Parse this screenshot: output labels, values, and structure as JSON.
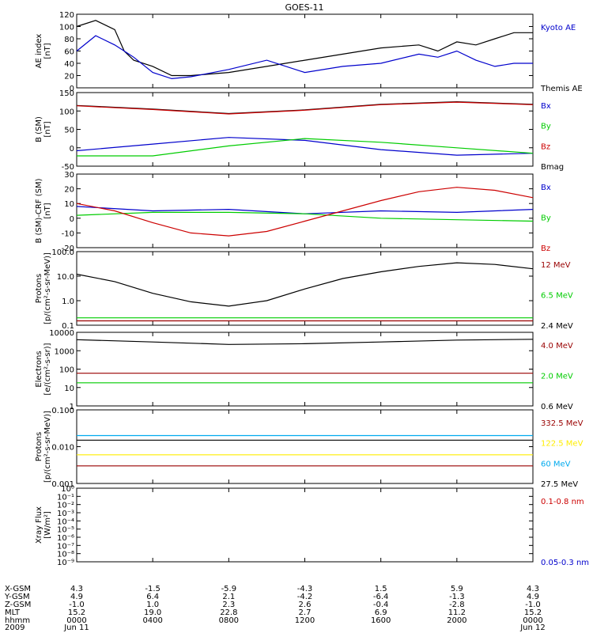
{
  "title": "GOES-11",
  "chart_data": [
    {
      "type": "line",
      "ylabel": "AE index\n[nT]",
      "ylim": [
        0,
        120
      ],
      "y_ticks": [
        "0",
        "20",
        "40",
        "60",
        "80",
        "100",
        "120"
      ],
      "legend": [
        {
          "name": "Kyoto AE",
          "color": "#0000cc"
        },
        {
          "name": "Themis AE",
          "color": "#000000"
        }
      ],
      "series": [
        {
          "name": "Themis AE",
          "color": "#000000",
          "x": [
            0,
            1,
            2,
            2.5,
            3,
            4,
            5,
            6,
            8,
            10,
            12,
            14,
            16,
            18,
            19,
            20,
            21,
            22,
            23,
            24
          ],
          "y": [
            100,
            110,
            95,
            60,
            45,
            35,
            20,
            20,
            25,
            35,
            45,
            55,
            65,
            70,
            60,
            75,
            70,
            80,
            90,
            90
          ]
        },
        {
          "name": "Kyoto AE",
          "color": "#0000cc",
          "x": [
            0,
            1,
            2,
            2.5,
            3,
            4,
            5,
            6,
            8,
            10,
            12,
            14,
            16,
            18,
            19,
            20,
            21,
            22,
            23,
            24
          ],
          "y": [
            60,
            85,
            70,
            60,
            50,
            25,
            15,
            18,
            30,
            45,
            25,
            35,
            40,
            55,
            50,
            60,
            45,
            35,
            40,
            40
          ]
        }
      ]
    },
    {
      "type": "line",
      "ylabel": "B (SM)\n[nT]",
      "ylim": [
        -50,
        150
      ],
      "y_ticks": [
        "-50",
        "0",
        "50",
        "100",
        "150"
      ],
      "legend": [
        {
          "name": "Bx",
          "color": "#0000cc"
        },
        {
          "name": "By",
          "color": "#00cc00"
        },
        {
          "name": "Bz",
          "color": "#cc0000"
        },
        {
          "name": "Bmag",
          "color": "#000000"
        }
      ],
      "series": [
        {
          "name": "Bmag",
          "color": "#000000",
          "x": [
            0,
            4,
            8,
            12,
            16,
            20,
            24
          ],
          "y": [
            115,
            105,
            93,
            103,
            118,
            125,
            118
          ]
        },
        {
          "name": "Bz",
          "color": "#cc0000",
          "x": [
            0,
            4,
            8,
            12,
            16,
            20,
            24
          ],
          "y": [
            114,
            104,
            92,
            102,
            117,
            124,
            117
          ]
        },
        {
          "name": "Bx",
          "color": "#0000cc",
          "x": [
            0,
            4,
            8,
            12,
            16,
            20,
            24
          ],
          "y": [
            -8,
            10,
            28,
            20,
            -5,
            -20,
            -15
          ]
        },
        {
          "name": "By",
          "color": "#00cc00",
          "x": [
            0,
            4,
            8,
            12,
            16,
            20,
            24
          ],
          "y": [
            -22,
            -22,
            5,
            25,
            15,
            0,
            -15
          ]
        }
      ]
    },
    {
      "type": "line",
      "ylabel": "B (SM)-CRF (SM)\n[nT]",
      "ylim": [
        -20,
        30
      ],
      "y_ticks": [
        "-20",
        "-10",
        "0",
        "10",
        "20",
        "30"
      ],
      "legend": [
        {
          "name": "Bx",
          "color": "#0000cc"
        },
        {
          "name": "By",
          "color": "#00cc00"
        },
        {
          "name": "Bz",
          "color": "#cc0000"
        }
      ],
      "series": [
        {
          "name": "Bx",
          "color": "#0000cc",
          "x": [
            0,
            4,
            8,
            12,
            16,
            20,
            24
          ],
          "y": [
            8,
            5,
            6,
            3,
            5,
            4,
            6
          ]
        },
        {
          "name": "By",
          "color": "#00cc00",
          "x": [
            0,
            4,
            8,
            12,
            16,
            20,
            24
          ],
          "y": [
            2,
            4,
            4,
            3,
            0,
            -1,
            -2
          ]
        },
        {
          "name": "Bz",
          "color": "#cc0000",
          "x": [
            0,
            2,
            4,
            6,
            8,
            10,
            12,
            14,
            16,
            18,
            20,
            22,
            24
          ],
          "y": [
            10,
            5,
            -3,
            -10,
            -12,
            -9,
            -2,
            5,
            12,
            18,
            21,
            19,
            14
          ]
        }
      ]
    },
    {
      "type": "line",
      "ylabel": "Protons\n[p/(cm²-s-sr-MeV)]",
      "ylog": true,
      "ylim": [
        0.1,
        100
      ],
      "y_ticks": [
        "0.1",
        "1.0",
        "10.0",
        "100.0"
      ],
      "legend": [
        {
          "name": "12 MeV",
          "color": "#990000"
        },
        {
          "name": "6.5 MeV",
          "color": "#00cc00"
        },
        {
          "name": "2.4 MeV",
          "color": "#000000"
        }
      ],
      "series": [
        {
          "name": "2.4 MeV",
          "color": "#000000",
          "x": [
            0,
            2,
            4,
            6,
            8,
            10,
            12,
            14,
            16,
            18,
            20,
            22,
            24
          ],
          "y": [
            12,
            6,
            2,
            0.9,
            0.6,
            1,
            3,
            8,
            15,
            25,
            35,
            30,
            20
          ]
        },
        {
          "name": "6.5 MeV",
          "color": "#00cc00",
          "x": [
            0,
            24
          ],
          "y": [
            0.2,
            0.2
          ]
        },
        {
          "name": "12 MeV",
          "color": "#990000",
          "x": [
            0,
            24
          ],
          "y": [
            0.15,
            0.15
          ]
        }
      ]
    },
    {
      "type": "line",
      "ylabel": "Electrons\n[e/(cm²-s-sr)]",
      "ylog": true,
      "ylim": [
        1,
        10000
      ],
      "y_ticks": [
        "1",
        "10",
        "100",
        "1000",
        "10000"
      ],
      "legend": [
        {
          "name": "4.0 MeV",
          "color": "#990000"
        },
        {
          "name": "2.0 MeV",
          "color": "#00cc00"
        },
        {
          "name": "0.6 MeV",
          "color": "#000000"
        }
      ],
      "series": [
        {
          "name": "0.6 MeV",
          "color": "#000000",
          "x": [
            0,
            4,
            8,
            12,
            16,
            20,
            24
          ],
          "y": [
            4000,
            3000,
            2200,
            2400,
            3000,
            3800,
            4200
          ]
        },
        {
          "name": "4.0 MeV",
          "color": "#990000",
          "x": [
            0,
            24
          ],
          "y": [
            60,
            60
          ]
        },
        {
          "name": "2.0 MeV",
          "color": "#00cc00",
          "x": [
            0,
            24
          ],
          "y": [
            18,
            18
          ]
        }
      ]
    },
    {
      "type": "line",
      "ylabel": "Protons\n[p/(cm²-s-sr-MeV)]",
      "ylog": true,
      "ylim": [
        0.001,
        0.1
      ],
      "y_ticks": [
        "0.001",
        "0.010",
        "0.100"
      ],
      "legend": [
        {
          "name": "332.5 MeV",
          "color": "#990000"
        },
        {
          "name": "122.5 MeV",
          "color": "#ffee00"
        },
        {
          "name": "60 MeV",
          "color": "#00aaee"
        },
        {
          "name": "27.5 MeV",
          "color": "#000000"
        }
      ],
      "series": [
        {
          "name": "27.5 MeV",
          "color": "#000000",
          "x": [
            0,
            24
          ],
          "y": [
            0.015,
            0.015
          ]
        },
        {
          "name": "60 MeV",
          "color": "#00aaee",
          "x": [
            0,
            24
          ],
          "y": [
            0.02,
            0.02
          ]
        },
        {
          "name": "122.5 MeV",
          "color": "#ffee00",
          "x": [
            0,
            24
          ],
          "y": [
            0.006,
            0.006
          ]
        },
        {
          "name": "332.5 MeV",
          "color": "#990000",
          "x": [
            0,
            24
          ],
          "y": [
            0.003,
            0.003
          ]
        }
      ]
    },
    {
      "type": "line",
      "ylabel": "Xray Flux\n[W/m²]",
      "ylog": true,
      "ylim": [
        1e-09,
        1
      ],
      "y_ticks": [
        "10⁻⁹",
        "10⁻⁸",
        "10⁻⁷",
        "10⁻⁶",
        "10⁻⁵",
        "10⁻⁴",
        "10⁻³",
        "10⁻²",
        "10⁻¹",
        "10⁰"
      ],
      "legend": [
        {
          "name": "0.1-0.8 nm",
          "color": "#cc0000"
        },
        {
          "name": "0.05-0.3 nm",
          "color": "#0000cc"
        }
      ],
      "series": []
    }
  ],
  "x_axis": {
    "row_labels": [
      "X-GSM",
      "Y-GSM",
      "Z-GSM",
      "MLT",
      "hhmm",
      "2009"
    ],
    "columns": [
      {
        "x": 0,
        "vals": [
          "4.3",
          "4.9",
          "-1.0",
          "15.2",
          "0000",
          "Jun 11"
        ]
      },
      {
        "x": 4,
        "vals": [
          "-1.5",
          "6.4",
          "1.0",
          "19.0",
          "0400",
          ""
        ]
      },
      {
        "x": 8,
        "vals": [
          "-5.9",
          "2.1",
          "2.3",
          "22.8",
          "0800",
          ""
        ]
      },
      {
        "x": 12,
        "vals": [
          "-4.3",
          "-4.2",
          "2.6",
          "2.7",
          "1200",
          ""
        ]
      },
      {
        "x": 16,
        "vals": [
          "1.5",
          "-6.4",
          "-0.4",
          "6.9",
          "1600",
          ""
        ]
      },
      {
        "x": 20,
        "vals": [
          "5.9",
          "-1.3",
          "-2.8",
          "11.2",
          "2000",
          ""
        ]
      },
      {
        "x": 24,
        "vals": [
          "4.3",
          "4.9",
          "-1.0",
          "15.2",
          "0000",
          "Jun 12"
        ]
      }
    ]
  }
}
